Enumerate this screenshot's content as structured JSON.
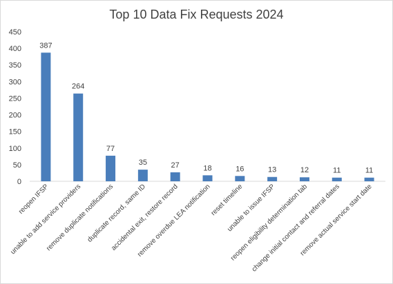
{
  "chart_data": {
    "type": "bar",
    "title": "Top 10 Data Fix Requests 2024",
    "categories": [
      "reopen IFSP",
      "unable to add service providers",
      "remove duplicate notifications",
      "duplicate record, same ID",
      "accidental exit, restore record",
      "remove overdue LEA notification",
      "reset timeline",
      "unable to issue IFSP",
      "reopen eligibility determination tab",
      "change initial contact and referral dates",
      "remove actual service start date"
    ],
    "values": [
      387,
      264,
      77,
      35,
      27,
      18,
      16,
      13,
      12,
      11,
      11
    ],
    "ylim": [
      0,
      450
    ],
    "yticks": [
      0,
      50,
      100,
      150,
      200,
      250,
      300,
      350,
      400,
      450
    ],
    "grid": false,
    "legend": "none",
    "bar_color": "#4a7ebb"
  }
}
